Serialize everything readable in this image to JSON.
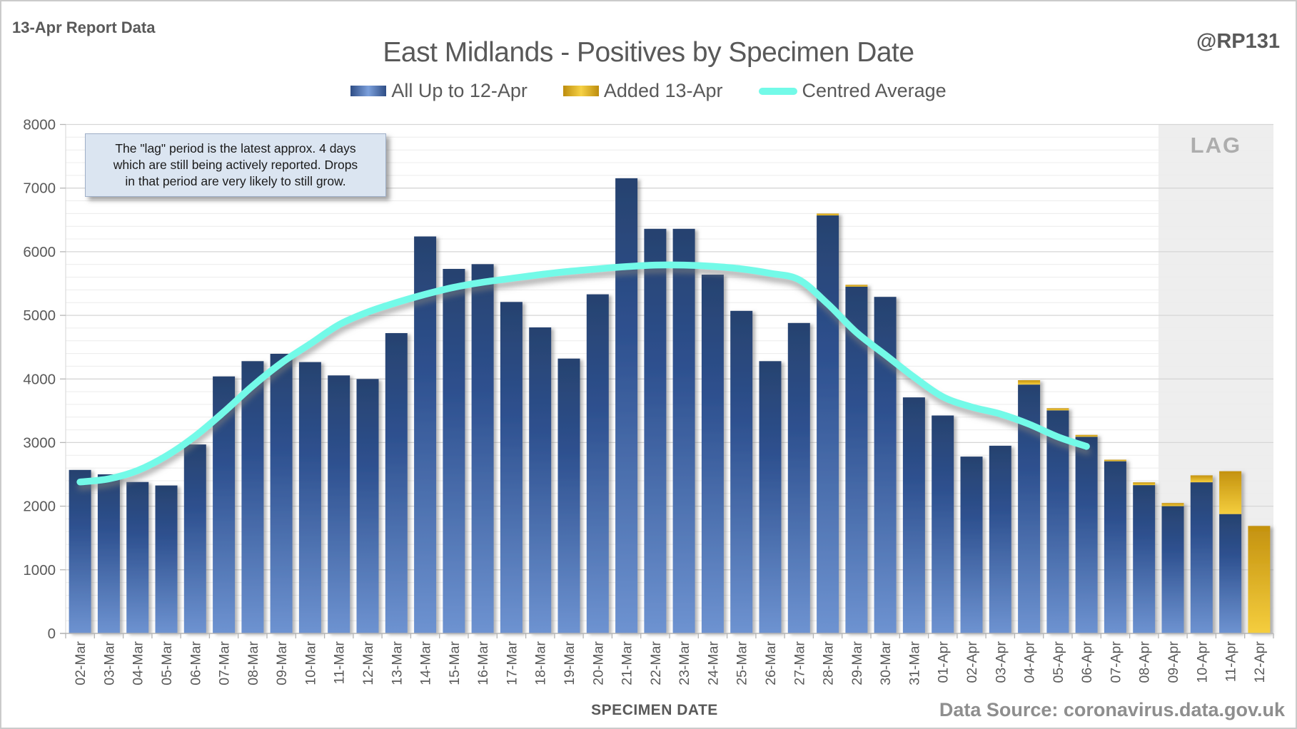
{
  "header": {
    "report_label": "13-Apr Report Data",
    "handle": "@RP131",
    "title": "East Midlands - Positives by Specimen Date"
  },
  "legend": [
    {
      "label": "All Up to 12-Apr",
      "swatch": "blue-gradient-bar"
    },
    {
      "label": "Added 13-Apr",
      "swatch": "gold-gradient-bar"
    },
    {
      "label": "Centred Average",
      "swatch": "cyan-line"
    }
  ],
  "annotation": {
    "lines": [
      "The \"lag\" period is the latest approx. 4 days",
      "which are still being actively reported.  Drops",
      "in that period are very likely to still grow."
    ]
  },
  "lag_label": "LAG",
  "x_axis_title": "SPECIMEN DATE",
  "data_source": "Data Source: coronavirus.data.gov.uk",
  "colors": {
    "text_gray": "#595959",
    "bar_blue_top": "#27426f",
    "bar_blue_mid": "#2e5190",
    "bar_blue_bottom": "#6e93d1",
    "bar_gold_top": "#c4920f",
    "bar_gold_bottom": "#f5ce3e",
    "average_line": "#73fae8",
    "lag_fill": "#eeeeee",
    "major_grid": "#d6d6d6",
    "minor_grid": "#ececec",
    "axis_line": "#b5b5b5"
  },
  "chart_data": {
    "type": "bar",
    "title": "East Midlands - Positives by Specimen Date",
    "xlabel": "SPECIMEN DATE",
    "ylabel": "",
    "ylim": [
      0,
      8000
    ],
    "y_tick_step": 1000,
    "minor_grid_step": 200,
    "grid": true,
    "legend_position": "top",
    "categories": [
      "02-Mar",
      "03-Mar",
      "04-Mar",
      "05-Mar",
      "06-Mar",
      "07-Mar",
      "08-Mar",
      "09-Mar",
      "10-Mar",
      "11-Mar",
      "12-Mar",
      "13-Mar",
      "14-Mar",
      "15-Mar",
      "16-Mar",
      "17-Mar",
      "18-Mar",
      "19-Mar",
      "20-Mar",
      "21-Mar",
      "22-Mar",
      "23-Mar",
      "24-Mar",
      "25-Mar",
      "26-Mar",
      "27-Mar",
      "28-Mar",
      "29-Mar",
      "30-Mar",
      "31-Mar",
      "01-Apr",
      "02-Apr",
      "03-Apr",
      "04-Apr",
      "05-Apr",
      "06-Apr",
      "07-Apr",
      "08-Apr",
      "09-Apr",
      "10-Apr",
      "11-Apr",
      "12-Apr"
    ],
    "series": [
      {
        "name": "All Up to 12-Apr",
        "type": "bar-stack-base",
        "values": [
          2570,
          2500,
          2380,
          2325,
          2970,
          4040,
          4280,
          4395,
          4265,
          4055,
          4000,
          4720,
          6240,
          5730,
          5805,
          5210,
          4810,
          4320,
          5330,
          7155,
          6360,
          6360,
          5640,
          5070,
          4280,
          4880,
          6570,
          5450,
          5290,
          3710,
          3425,
          2780,
          2950,
          3910,
          3505,
          3090,
          2705,
          2330,
          2000,
          2375,
          1875,
          0
        ]
      },
      {
        "name": "Added 13-Apr",
        "type": "bar-stack-top",
        "values": [
          0,
          0,
          0,
          0,
          0,
          0,
          0,
          0,
          0,
          0,
          0,
          0,
          0,
          0,
          0,
          0,
          0,
          0,
          0,
          0,
          0,
          0,
          0,
          0,
          0,
          0,
          30,
          30,
          0,
          0,
          0,
          0,
          0,
          70,
          35,
          30,
          25,
          45,
          50,
          110,
          675,
          1690
        ]
      },
      {
        "name": "Centred Average",
        "type": "line",
        "values": [
          2380,
          2430,
          2560,
          2790,
          3100,
          3480,
          3890,
          4250,
          4550,
          4850,
          5050,
          5200,
          5330,
          5440,
          5520,
          5580,
          5640,
          5690,
          5730,
          5765,
          5790,
          5790,
          5770,
          5730,
          5660,
          5560,
          5180,
          4730,
          4380,
          4030,
          3720,
          3560,
          3450,
          3290,
          3090,
          2940,
          null,
          null,
          null,
          null,
          null,
          null
        ]
      }
    ],
    "lag_region": {
      "label": "LAG",
      "start_category": "09-Apr",
      "end_category": "12-Apr"
    }
  }
}
